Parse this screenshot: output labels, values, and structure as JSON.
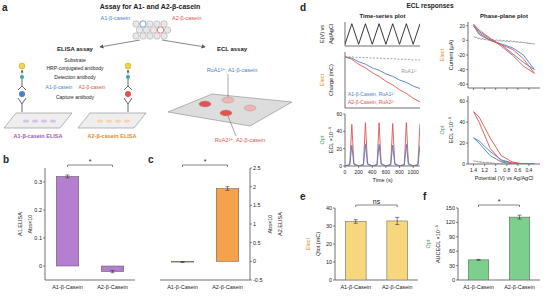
{
  "diagram": {
    "panel": "a",
    "title": "Assay for A1- and A2-β-casein",
    "milk_labels": [
      "A1-β-casein",
      "A2-β-casein"
    ],
    "elisa": {
      "title": "ELISA assay",
      "labels": [
        "Substrate",
        "HRP-conjugated antibody",
        "Detection antibody",
        "A1-β-casein",
        "A2-β-casein",
        "Capture antibody"
      ],
      "plates": [
        "A1-β-casein ELISA",
        "A2-β-casein ELISA"
      ]
    },
    "ecl": {
      "title": "ECL assay",
      "labels": [
        "RuA1²⁺; A1-β-casein",
        "RuA2²⁺, A2-β-casein"
      ]
    }
  },
  "panel_d": {
    "label": "d",
    "title": "ECL responses"
  },
  "chart_data": [
    {
      "type": "bar",
      "panel": "b",
      "categories": [
        "A1-β-Casein",
        "A2-β-Casein"
      ],
      "series": [
        {
          "values": [
            0.32,
            -0.02
          ],
          "errors": [
            0.005,
            0.004
          ],
          "color": "#b57fcf"
        }
      ],
      "y_label": [
        "A1.ELISA",
        "Abs×10"
      ],
      "ylim": [
        -0.05,
        0.35
      ],
      "yticks": [
        0,
        0.1,
        0.2,
        0.3
      ],
      "annotation": "*"
    },
    {
      "type": "bar",
      "panel": "c",
      "categories": [
        "A1-β-Casein",
        "A2-β-Casein"
      ],
      "series": [
        {
          "values": [
            -0.02,
            1.95
          ],
          "errors": [
            0.01,
            0.05
          ],
          "color": "#f5a24b",
          "axis": "y2"
        }
      ],
      "y_label": [
        "Abs×10",
        "A2.ELISA"
      ],
      "y2lim": [
        -0.5,
        2.5
      ],
      "y2ticks": [
        -0.5,
        0,
        0.5,
        1,
        1.5,
        2,
        2.5
      ],
      "annotation": "*"
    },
    {
      "type": "line",
      "title": "Time-series plot",
      "y_label": [
        "E(V) vs",
        "Ag/AgCl"
      ],
      "x": [
        0,
        100,
        200,
        300,
        400,
        500,
        600,
        700,
        800,
        900,
        1000,
        1100
      ],
      "series": [
        {
          "values": [
            0.2,
            1.4,
            0.2,
            1.4,
            0.2,
            1.4,
            0.2,
            1.4,
            0.2,
            1.4,
            0.2,
            1.4
          ],
          "color": "#222222"
        }
      ],
      "xlim": [
        0,
        1100
      ],
      "ylim": [
        0.1,
        1.5
      ],
      "tick_labels": false
    },
    {
      "type": "line",
      "y_label": [
        "Elect",
        "Charge (mC)"
      ],
      "x": [
        0,
        100,
        200,
        300,
        400,
        500,
        600,
        700,
        800,
        900,
        1000,
        1100
      ],
      "series": [
        {
          "name": "RuA1²⁺",
          "values": [
            0,
            0,
            -0.5,
            -0.5,
            -1,
            -1,
            -1.5,
            -1.5,
            -2,
            -2,
            -2.5,
            -2.5
          ],
          "color": "#999999",
          "line_style": "dashed"
        },
        {
          "name": "A1-β-Casein, RuA1²⁺",
          "values": [
            0,
            -1,
            -4,
            -6,
            -9,
            -11,
            -14,
            -16,
            -19,
            -21,
            -24,
            -26
          ],
          "color": "#4a7fc1"
        },
        {
          "name": "A2-β-Casein, RuA2²⁺",
          "values": [
            0,
            -2,
            -6,
            -9,
            -13,
            -16,
            -20,
            -23,
            -27,
            -30,
            -34,
            -37
          ],
          "color": "#e2534f"
        }
      ],
      "xlim": [
        0,
        1100
      ],
      "ylim": [
        -42,
        4
      ],
      "tick_labels": false
    },
    {
      "type": "line",
      "y_label": [
        "Opt",
        "ECL ×10⁻⁵"
      ],
      "x_label": "Time (s)",
      "x": [
        0,
        70,
        100,
        130,
        200,
        270,
        300,
        330,
        400,
        470,
        500,
        530,
        600,
        670,
        700,
        730,
        800,
        870,
        900,
        930,
        1000,
        1070,
        1100
      ],
      "series": [
        {
          "values": [
            0,
            2,
            48,
            3,
            0,
            2,
            50,
            3,
            0,
            2,
            50,
            3,
            0,
            2,
            49,
            3,
            0,
            2,
            50,
            3,
            0,
            2,
            49
          ],
          "color": "#e2534f"
        },
        {
          "values": [
            0,
            1,
            24,
            2,
            0,
            1,
            25,
            2,
            0,
            1,
            25,
            2,
            0,
            1,
            24,
            2,
            0,
            1,
            25,
            2,
            0,
            1,
            24
          ],
          "color": "#4a7fc1"
        }
      ],
      "xlim": [
        0,
        1100
      ],
      "xticks": [
        0,
        200,
        400,
        600,
        800,
        1000
      ],
      "ylim": [
        0,
        60
      ],
      "yticks": [
        0,
        20,
        40,
        60
      ]
    },
    {
      "type": "line",
      "title": "Phase-plane plot",
      "y_label": [
        "Elect",
        "Current (μA)"
      ],
      "x": [
        0.3,
        0.5,
        0.7,
        0.9,
        1.1,
        1.3,
        1.4,
        1.3,
        1.1,
        0.9,
        0.7,
        0.5,
        0.3
      ],
      "series": [
        {
          "values": [
            -5,
            -3,
            -2,
            -1,
            0,
            2,
            5,
            3,
            1,
            0,
            -1,
            -3,
            -5
          ],
          "color": "#999999",
          "line_style": "dashed"
        },
        {
          "values": [
            -40,
            -20,
            -10,
            -5,
            0,
            8,
            20,
            12,
            2,
            -6,
            -18,
            -30,
            -40
          ],
          "color": "#4a7fc1"
        },
        {
          "values": [
            -45,
            -25,
            -12,
            -6,
            0,
            10,
            22,
            14,
            3,
            -8,
            -20,
            -35,
            -45
          ],
          "color": "#e2534f"
        }
      ],
      "xlim": [
        1.5,
        0.2
      ],
      "xticks": [
        1.4,
        1.2,
        1,
        0.8,
        0.6,
        0.4
      ],
      "ylim": [
        -65,
        25
      ],
      "yticks": [
        20,
        0,
        -20,
        -40,
        -60
      ],
      "tick_labels": "y"
    },
    {
      "type": "line",
      "y_label": [
        "Opt",
        "ECL ×10⁻⁵"
      ],
      "x_label": "Potential (V) vs Ag/AgCl",
      "x": [
        0.3,
        0.5,
        0.7,
        0.9,
        1.1,
        1.3,
        1.4,
        1.3,
        1.1,
        0.9,
        0.7,
        0.5,
        0.3
      ],
      "series": [
        {
          "values": [
            0,
            0,
            0,
            0,
            1,
            2,
            3,
            2,
            1,
            0,
            0,
            0,
            0
          ],
          "color": "#999999",
          "line_style": "dashed"
        },
        {
          "values": [
            0,
            0,
            0,
            2,
            8,
            20,
            25,
            22,
            12,
            4,
            1,
            0,
            0
          ],
          "color": "#4a7fc1"
        },
        {
          "values": [
            0,
            0,
            1,
            3,
            15,
            40,
            50,
            45,
            25,
            8,
            2,
            0,
            0
          ],
          "color": "#e2534f"
        }
      ],
      "xlim": [
        1.5,
        0.2
      ],
      "xticks": [
        1.4,
        1.2,
        1,
        0.8,
        0.6,
        0.4
      ],
      "ylim": [
        0,
        65
      ],
      "yticks": [
        0,
        20,
        40,
        60
      ]
    },
    {
      "type": "bar",
      "panel": "e",
      "categories": [
        "A1-β-Casein",
        "A2-β-Casein"
      ],
      "series": [
        {
          "values": [
            32.5,
            32.8
          ],
          "errors": [
            1,
            2
          ],
          "color": "#f7d77e"
        }
      ],
      "y_label": [
        "Elect",
        "Qtot (mC)"
      ],
      "ylim": [
        0,
        40
      ],
      "yticks": [
        0,
        10,
        20,
        30,
        40
      ],
      "annotation": "ns"
    },
    {
      "type": "bar",
      "panel": "f",
      "categories": [
        "A1-β-Casein",
        "A2-β-Casein"
      ],
      "series": [
        {
          "values": [
            42,
            131
          ],
          "errors": [
            1,
            4
          ],
          "color": "#7ccf8d"
        }
      ],
      "y_label": [
        "Opt",
        "AUCECL ×10⁻⁵"
      ],
      "ylim": [
        0,
        150
      ],
      "yticks": [
        0,
        30,
        60,
        90,
        120,
        150
      ],
      "annotation": "*"
    }
  ]
}
